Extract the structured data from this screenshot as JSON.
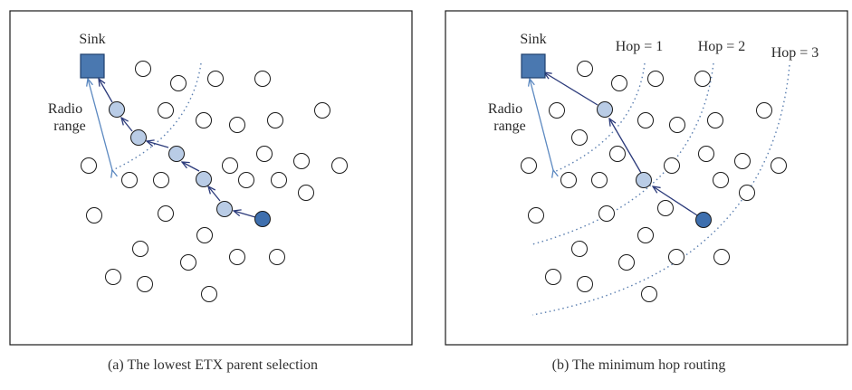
{
  "colors": {
    "frame": "#1a1a1a",
    "sink_fill": "#4a78b0",
    "sink_stroke": "#1f3f6e",
    "relay_fill": "#b9cce6",
    "source_fill": "#3e6fae",
    "plain_fill": "#ffffff",
    "node_stroke": "#1a1a1a",
    "route_arrow": "#2b3a7a",
    "range_arrow": "#5b88c0",
    "dotted": "#5b7fb0"
  },
  "panel_a": {
    "sink_label": "Sink",
    "range_label_line1": "Radio",
    "range_label_line2": "range",
    "caption": "(a) The lowest ETX parent selection"
  },
  "panel_b": {
    "sink_label": "Sink",
    "range_label_line1": "Radio",
    "range_label_line2": "range",
    "hop_labels": [
      "Hop = 1",
      "Hop = 2",
      "Hop = 3"
    ],
    "caption": "(b) The minimum hop routing"
  }
}
